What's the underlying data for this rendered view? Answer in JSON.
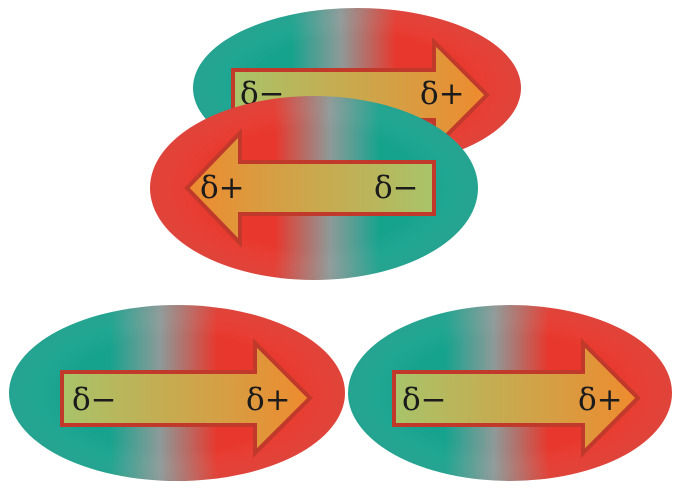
{
  "colors": {
    "positive": "#e8372c",
    "negative": "#16a38e",
    "neutral": "#8d9a98",
    "arrow_left_end": "#a8c46a",
    "arrow_right_end": "#ef8a2e",
    "arrow_stroke": "#c0392b"
  },
  "dipoles": [
    {
      "id": "top-back",
      "direction": "right",
      "left_label": "δ−",
      "right_label": "δ+"
    },
    {
      "id": "top-front",
      "direction": "left",
      "left_label": "δ+",
      "right_label": "δ−"
    },
    {
      "id": "bottom-left",
      "direction": "right",
      "left_label": "δ−",
      "right_label": "δ+"
    },
    {
      "id": "bottom-right",
      "direction": "right",
      "left_label": "δ−",
      "right_label": "δ+"
    }
  ]
}
